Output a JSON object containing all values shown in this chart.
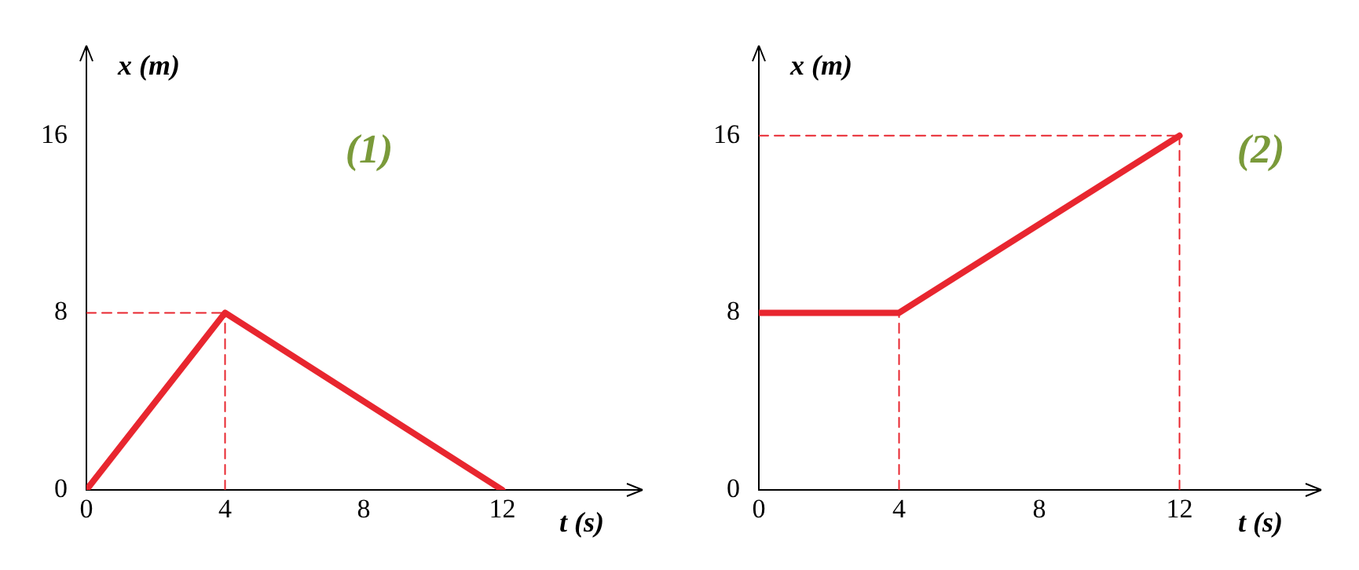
{
  "chart_data": [
    {
      "type": "line",
      "xlabel": "t (s)",
      "ylabel": "x (m)",
      "annotations": [
        "(1)"
      ],
      "xlim": [
        0,
        16
      ],
      "ylim": [
        0,
        20
      ],
      "xticks": [
        0,
        4,
        8,
        12
      ],
      "yticks": [
        0,
        8,
        16
      ],
      "grid": false,
      "legend": false,
      "marker": "none",
      "series": [
        {
          "color": "#e8262f",
          "x": [
            0,
            4,
            12
          ],
          "values": [
            0,
            8,
            0
          ]
        },
        {
          "color": "#e8262f",
          "line_style": "dashed",
          "x": [
            0,
            4
          ],
          "values": [
            8,
            8
          ]
        },
        {
          "color": "#e8262f",
          "line_style": "dashed",
          "x": [
            4,
            4
          ],
          "values": [
            0,
            8
          ]
        }
      ]
    },
    {
      "type": "line",
      "xlabel": "t (s)",
      "ylabel": "x (m)",
      "annotations": [
        "(2)"
      ],
      "xlim": [
        0,
        16
      ],
      "ylim": [
        0,
        20
      ],
      "xticks": [
        0,
        4,
        8,
        12
      ],
      "yticks": [
        0,
        8,
        16
      ],
      "grid": false,
      "legend": false,
      "marker": "none",
      "series": [
        {
          "color": "#e8262f",
          "x": [
            0,
            4,
            12
          ],
          "values": [
            8,
            8,
            16
          ]
        },
        {
          "color": "#e8262f",
          "line_style": "dashed",
          "x": [
            4,
            4
          ],
          "values": [
            0,
            8
          ]
        },
        {
          "color": "#e8262f",
          "line_style": "dashed",
          "x": [
            0,
            12
          ],
          "values": [
            16,
            16
          ]
        },
        {
          "color": "#e8262f",
          "line_style": "dashed",
          "x": [
            12,
            12
          ],
          "values": [
            0,
            16
          ]
        }
      ]
    }
  ]
}
